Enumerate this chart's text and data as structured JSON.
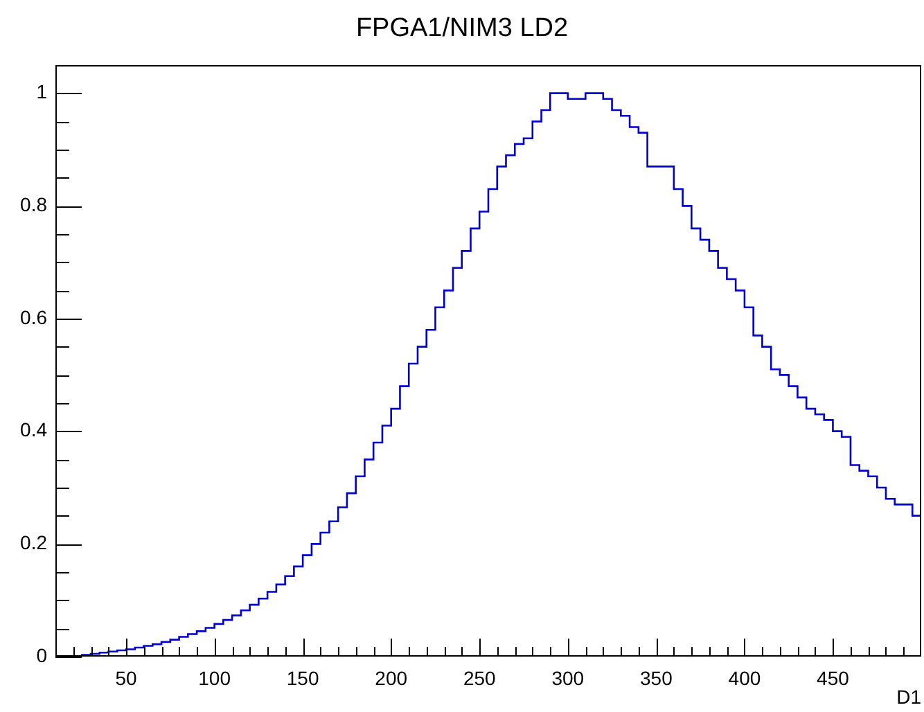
{
  "chart_data": {
    "type": "histogram",
    "title": "FPGA1/NIM3 LD2",
    "xlabel": "D1",
    "color": "#0000cc",
    "bins": [
      10,
      15,
      20,
      25,
      30,
      35,
      40,
      45,
      50,
      55,
      60,
      65,
      70,
      75,
      80,
      85,
      90,
      95,
      100,
      105,
      110,
      115,
      120,
      125,
      130,
      135,
      140,
      145,
      150,
      155,
      160,
      165,
      170,
      175,
      180,
      185,
      190,
      195,
      200,
      205,
      210,
      215,
      220,
      225,
      230,
      235,
      240,
      245,
      250,
      255,
      260,
      265,
      270,
      275,
      280,
      285,
      290,
      295,
      300,
      305,
      310,
      315,
      320,
      325,
      330,
      335,
      340,
      345,
      350,
      355,
      360,
      365,
      370,
      375,
      380,
      385,
      390,
      395,
      400,
      405,
      410,
      415,
      420,
      425,
      430,
      435,
      440,
      445,
      450,
      455,
      460,
      465,
      470,
      475,
      480,
      485,
      490,
      495,
      500
    ],
    "values": [
      0,
      0,
      0.001,
      0.003,
      0.005,
      0.007,
      0.009,
      0.011,
      0.013,
      0.016,
      0.019,
      0.022,
      0.026,
      0.03,
      0.035,
      0.04,
      0.045,
      0.051,
      0.058,
      0.065,
      0.073,
      0.082,
      0.092,
      0.103,
      0.115,
      0.128,
      0.143,
      0.16,
      0.18,
      0.2,
      0.22,
      0.24,
      0.265,
      0.29,
      0.32,
      0.35,
      0.38,
      0.41,
      0.44,
      0.48,
      0.52,
      0.55,
      0.58,
      0.62,
      0.65,
      0.69,
      0.72,
      0.76,
      0.79,
      0.83,
      0.87,
      0.89,
      0.91,
      0.92,
      0.95,
      0.97,
      1.0,
      1.0,
      0.99,
      0.99,
      1.0,
      1.0,
      0.99,
      0.97,
      0.96,
      0.94,
      0.93,
      0.87,
      0.87,
      0.87,
      0.83,
      0.8,
      0.76,
      0.74,
      0.72,
      0.69,
      0.67,
      0.65,
      0.62,
      0.57,
      0.55,
      0.51,
      0.5,
      0.48,
      0.46,
      0.44,
      0.43,
      0.42,
      0.4,
      0.39,
      0.34,
      0.33,
      0.32,
      0.3,
      0.28,
      0.27,
      0.27,
      0.25
    ],
    "xlim": [
      10,
      500
    ],
    "ylim": [
      0,
      1.05
    ],
    "xticks": [
      {
        "value": 20,
        "label": null
      },
      {
        "value": 30,
        "label": null
      },
      {
        "value": 40,
        "label": null
      },
      50,
      {
        "value": 60,
        "label": null
      },
      {
        "value": 70,
        "label": null
      },
      {
        "value": 80,
        "label": null
      },
      {
        "value": 90,
        "label": null
      },
      100,
      {
        "value": 110,
        "label": null
      },
      {
        "value": 120,
        "label": null
      },
      {
        "value": 130,
        "label": null
      },
      {
        "value": 140,
        "label": null
      },
      150,
      {
        "value": 160,
        "label": null
      },
      {
        "value": 170,
        "label": null
      },
      {
        "value": 180,
        "label": null
      },
      {
        "value": 190,
        "label": null
      },
      200,
      {
        "value": 210,
        "label": null
      },
      {
        "value": 220,
        "label": null
      },
      {
        "value": 230,
        "label": null
      },
      {
        "value": 240,
        "label": null
      },
      250,
      {
        "value": 260,
        "label": null
      },
      {
        "value": 270,
        "label": null
      },
      {
        "value": 280,
        "label": null
      },
      {
        "value": 290,
        "label": null
      },
      300,
      {
        "value": 310,
        "label": null
      },
      {
        "value": 320,
        "label": null
      },
      {
        "value": 330,
        "label": null
      },
      {
        "value": 340,
        "label": null
      },
      350,
      {
        "value": 360,
        "label": null
      },
      {
        "value": 370,
        "label": null
      },
      {
        "value": 380,
        "label": null
      },
      {
        "value": 390,
        "label": null
      },
      400,
      {
        "value": 410,
        "label": null
      },
      {
        "value": 420,
        "label": null
      },
      {
        "value": 430,
        "label": null
      },
      {
        "value": 440,
        "label": null
      },
      450,
      {
        "value": 460,
        "label": null
      },
      {
        "value": 470,
        "label": null
      },
      {
        "value": 480,
        "label": null
      },
      {
        "value": 490,
        "label": null
      }
    ],
    "yticks": [
      0,
      {
        "value": 0.05,
        "label": null
      },
      {
        "value": 0.1,
        "label": null
      },
      {
        "value": 0.15,
        "label": null
      },
      0.2,
      {
        "value": 0.25,
        "label": null
      },
      {
        "value": 0.3,
        "label": null
      },
      {
        "value": 0.35,
        "label": null
      },
      0.4,
      {
        "value": 0.45,
        "label": null
      },
      {
        "value": 0.5,
        "label": null
      },
      {
        "value": 0.55,
        "label": null
      },
      0.6,
      {
        "value": 0.65,
        "label": null
      },
      {
        "value": 0.7,
        "label": null
      },
      {
        "value": 0.75,
        "label": null
      },
      0.8,
      {
        "value": 0.85,
        "label": null
      },
      {
        "value": 0.9,
        "label": null
      },
      {
        "value": 0.95,
        "label": null
      },
      1,
      {
        "value": 1.05,
        "label": null
      }
    ],
    "grid": false,
    "legend": false
  }
}
